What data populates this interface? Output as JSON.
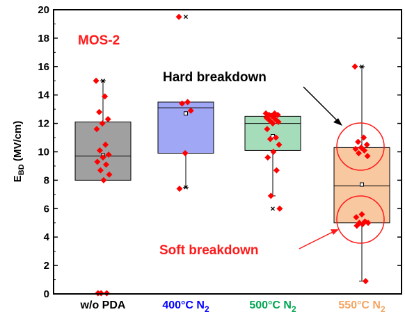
{
  "chart_data": {
    "type": "box",
    "ylabel_main": "E",
    "ylabel_sub": "BD",
    "ylabel_unit": " (MV/cm)",
    "ylim": [
      0,
      20
    ],
    "yticks": [
      "0",
      "2",
      "4",
      "6",
      "8",
      "10",
      "12",
      "14",
      "16",
      "18",
      "20"
    ],
    "annotations": {
      "sample": "MOS-2",
      "hard": "Hard breakdown",
      "soft": "Soft breakdown"
    },
    "colors": {
      "annotation_red": "#ff1a1a",
      "point": "#ff0000"
    },
    "categories": [
      {
        "label_main": "w/o PDA",
        "label_sub": "",
        "label_color": "#000000",
        "fill": "#a0a0a0",
        "q1": 8.0,
        "median": 9.7,
        "q3": 12.1,
        "mean": 9.75,
        "whisker_low": 8.0,
        "whisker_high": 15.0,
        "max_marker": 15.0,
        "min_marker": null,
        "points": [
          15.0,
          13.9,
          12.8,
          12.3,
          12.0,
          11.6,
          10.5,
          10.1,
          9.8,
          9.6,
          9.3,
          9.1,
          8.7,
          8.4,
          8.0,
          0.05,
          0.05,
          0.05
        ]
      },
      {
        "label_main": "400°C N",
        "label_sub": "2",
        "label_color": "#0000ff",
        "fill": "#a0a8f5",
        "q1": 9.9,
        "median": 13.1,
        "q3": 13.5,
        "mean": 12.7,
        "whisker_low": 7.5,
        "whisker_high": 13.5,
        "max_marker": 19.5,
        "min_marker": 7.5,
        "points": [
          19.5,
          13.5,
          13.4,
          12.9,
          9.9,
          7.4
        ]
      },
      {
        "label_main": "500°C N",
        "label_sub": "2",
        "label_color": "#00a550",
        "fill": "#a5ddbb",
        "q1": 10.1,
        "median": 12.0,
        "q3": 12.5,
        "mean": 11.1,
        "whisker_low": 6.9,
        "whisker_high": 12.7,
        "max_marker": null,
        "min_marker": 6.0,
        "points": [
          12.7,
          12.7,
          12.6,
          12.6,
          12.5,
          12.4,
          12.3,
          12.2,
          12.1,
          12.0,
          11.6,
          11.0,
          10.9,
          10.5,
          10.0,
          9.6,
          8.7,
          6.9,
          6.0
        ]
      },
      {
        "label_main": "550°C N",
        "label_sub": "2",
        "label_color": "#f4a460",
        "fill": "#f8c8a0",
        "q1": 5.0,
        "median": 7.6,
        "q3": 10.3,
        "mean": 7.7,
        "whisker_low": 0.9,
        "whisker_high": 16.0,
        "max_marker": 16.0,
        "min_marker": null,
        "points": [
          16.0,
          11.0,
          10.7,
          10.5,
          10.3,
          10.2,
          10.1,
          9.9,
          9.7,
          5.6,
          5.4,
          5.1,
          5.0,
          5.0,
          4.9,
          4.8,
          0.9
        ]
      }
    ]
  }
}
